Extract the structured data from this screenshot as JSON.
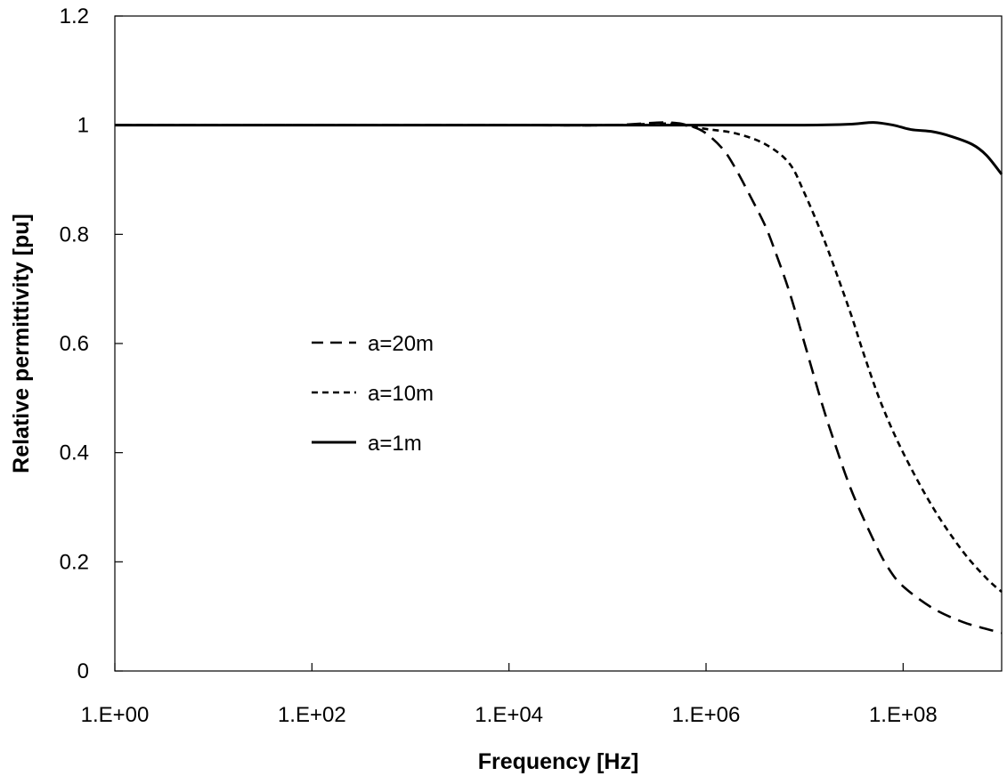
{
  "chart_data": {
    "type": "line",
    "title": "",
    "xlabel": "Frequency [Hz]",
    "ylabel": "Relative permittivity [pu]",
    "x_scale": "log",
    "xlim": [
      1,
      1000000000
    ],
    "ylim": [
      0,
      1.2
    ],
    "x_ticks": [
      1,
      100,
      10000,
      1000000,
      100000000
    ],
    "x_tick_labels": [
      "1.E+00",
      "1.E+02",
      "1.E+04",
      "1.E+06",
      "1.E+08"
    ],
    "y_ticks": [
      0,
      0.2,
      0.4,
      0.6,
      0.8,
      1,
      1.2
    ],
    "y_tick_labels": [
      "0",
      "0.2",
      "0.4",
      "0.6",
      "0.8",
      "1",
      "1.2"
    ],
    "grid": false,
    "legend_position": "center-left",
    "series": [
      {
        "name": "a=20m",
        "line_style": "dashed",
        "color": "#000000",
        "x": [
          1,
          100,
          10000,
          100000,
          400000,
          700000,
          1000000,
          1500000,
          2000000,
          3000000,
          4000000,
          5000000,
          7000000,
          10000000,
          15000000,
          20000000,
          30000000,
          50000000,
          70000000,
          100000000,
          200000000,
          400000000,
          700000000,
          1000000000
        ],
        "y": [
          1,
          1,
          1,
          1,
          1.005,
          0.998,
          0.985,
          0.955,
          0.92,
          0.86,
          0.815,
          0.77,
          0.695,
          0.6,
          0.49,
          0.42,
          0.33,
          0.24,
          0.19,
          0.155,
          0.115,
          0.09,
          0.077,
          0.07
        ]
      },
      {
        "name": "a=10m",
        "line_style": "dotted",
        "color": "#000000",
        "x": [
          1,
          100,
          10000,
          100000,
          400000,
          700000,
          1000000,
          2000000,
          4000000,
          7000000,
          10000000,
          15000000,
          20000000,
          30000000,
          40000000,
          60000000,
          100000000,
          200000000,
          400000000,
          700000000,
          1000000000
        ],
        "y": [
          1,
          1,
          1,
          1,
          1.003,
          0.998,
          0.993,
          0.985,
          0.965,
          0.93,
          0.875,
          0.8,
          0.74,
          0.65,
          0.58,
          0.49,
          0.4,
          0.3,
          0.22,
          0.17,
          0.145
        ]
      },
      {
        "name": "a=1m",
        "line_style": "solid",
        "color": "#000000",
        "x": [
          1,
          100,
          10000,
          1000000,
          10000000,
          30000000,
          50000000,
          80000000,
          120000000,
          200000000,
          300000000,
          500000000,
          700000000,
          1000000000
        ],
        "y": [
          1,
          1,
          1,
          1,
          1,
          1.002,
          1.005,
          1,
          0.992,
          0.988,
          0.98,
          0.965,
          0.945,
          0.91
        ]
      }
    ]
  }
}
